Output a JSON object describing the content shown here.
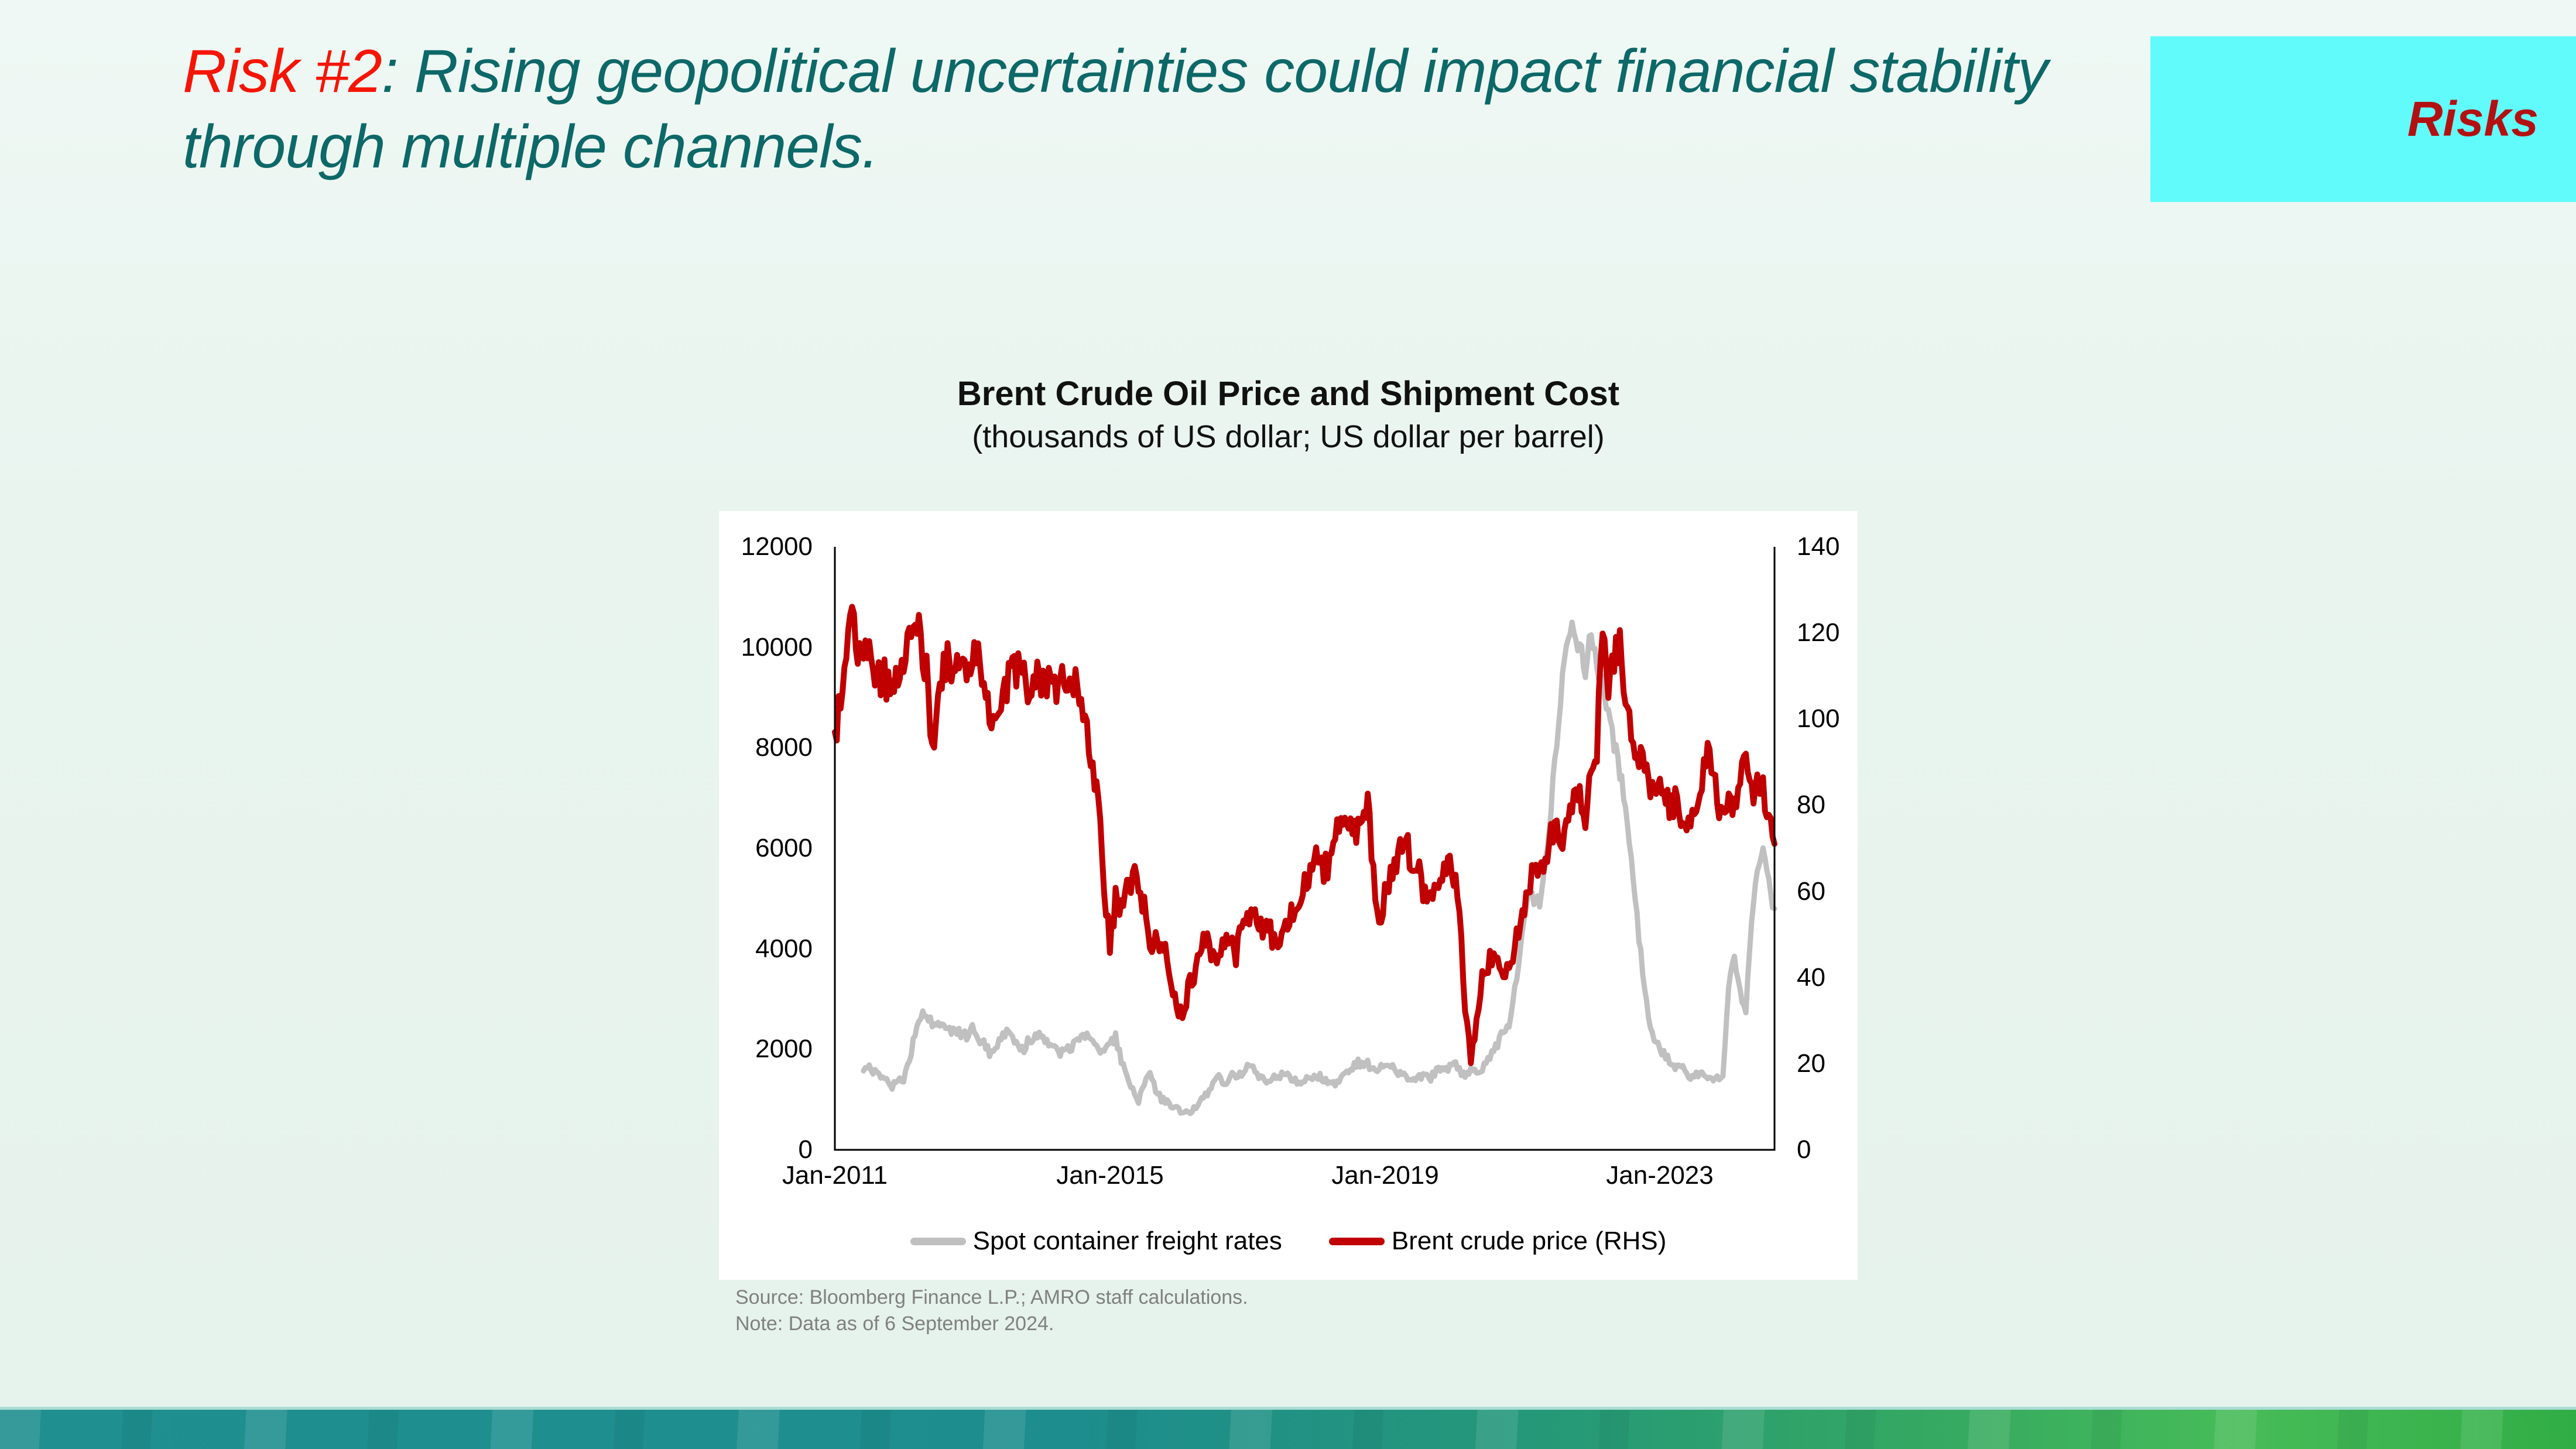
{
  "slide": {
    "title": {
      "highlight": "Risk #2",
      "rest": ": Rising geopolitical uncertainties could impact financial stability through multiple channels.",
      "highlight_color": "#F61505",
      "text_color": "#0D6868"
    },
    "section_tab": {
      "label": "Risks",
      "bg_color": "#62FBFB",
      "text_color": "#B31111"
    },
    "background_color": "#E9F4EF",
    "footer_colors": {
      "left_teal": "#1F8F8F",
      "right_green": "#31AD46"
    }
  },
  "chart": {
    "title": "Brent Crude Oil Price and Shipment Cost",
    "subtitle": "(thousands of US dollar; US dollar per barrel)",
    "source": "Source: Bloomberg Finance L.P.; AMRO staff calculations.",
    "note": "Note: Data as of 6 September 2024."
  },
  "chart_data": {
    "type": "line",
    "title": "Brent Crude Oil Price and Shipment Cost",
    "subtitle": "(thousands of US dollar; US dollar per barrel)",
    "x_start_month": "2011-01",
    "x_end_month": "2024-09",
    "x_tick_labels": [
      "Jan-2011",
      "Jan-2015",
      "Jan-2019",
      "Jan-2023"
    ],
    "x_tick_month_index": [
      0,
      48,
      96,
      144
    ],
    "left_axis": {
      "min": 0,
      "max": 12000,
      "tick_step": 2000,
      "ticks": [
        12000,
        10000,
        8000,
        6000,
        4000,
        2000,
        0
      ]
    },
    "right_axis": {
      "min": 0,
      "max": 140,
      "tick_step": 20,
      "ticks": [
        140,
        120,
        100,
        80,
        60,
        40,
        20,
        0
      ]
    },
    "grid": false,
    "legend_position": "bottom",
    "series": [
      {
        "name": "Spot container freight rates",
        "axis": "left",
        "color": "#C0C0C0",
        "monthly_values": [
          null,
          null,
          null,
          null,
          null,
          1570,
          1620,
          1540,
          1480,
          1400,
          1260,
          1350,
          1400,
          1800,
          2300,
          2650,
          2700,
          2500,
          2600,
          2400,
          2350,
          2450,
          2300,
          2250,
          2400,
          2250,
          2100,
          1950,
          2050,
          2200,
          2300,
          2250,
          2100,
          2000,
          2200,
          2250,
          2300,
          2200,
          2050,
          1900,
          1950,
          2000,
          2100,
          2200,
          2250,
          2100,
          1950,
          1900,
          2100,
          2250,
          1800,
          1400,
          1250,
          1000,
          1300,
          1600,
          1200,
          1000,
          950,
          900,
          800,
          700,
          750,
          850,
          1050,
          1150,
          1300,
          1450,
          1300,
          1500,
          1400,
          1550,
          1700,
          1650,
          1500,
          1400,
          1350,
          1450,
          1500,
          1450,
          1400,
          1350,
          1400,
          1450,
          1500,
          1450,
          1350,
          1300,
          1400,
          1500,
          1600,
          1700,
          1750,
          1700,
          1650,
          1600,
          1700,
          1650,
          1550,
          1500,
          1450,
          1400,
          1450,
          1500,
          1450,
          1550,
          1600,
          1650,
          1700,
          1600,
          1500,
          1550,
          1600,
          1650,
          1800,
          1950,
          2200,
          2400,
          2600,
          3500,
          4300,
          5200,
          5000,
          4900,
          5700,
          6800,
          8200,
          9400,
          10100,
          10400,
          9900,
          9600,
          10300,
          9800,
          9200,
          8600,
          8100,
          7500,
          6900,
          5800,
          4600,
          3500,
          2600,
          2200,
          2000,
          1850,
          1700,
          1650,
          1600,
          1500,
          1450,
          1550,
          1400,
          1350,
          1400,
          1500,
          3300,
          3900,
          3100,
          2800,
          4400,
          5600,
          5900,
          5300,
          4800
        ]
      },
      {
        "name": "Brent crude price (RHS)",
        "axis": "right",
        "color": "#C00000",
        "monthly_values": [
          97,
          104,
          115,
          124,
          115,
          114,
          117,
          110,
          110,
          109,
          111,
          108,
          111,
          119,
          125,
          120,
          110,
          95,
          103,
          113,
          113,
          112,
          110,
          109,
          113,
          116,
          109,
          102,
          103,
          103,
          108,
          111,
          112,
          109,
          108,
          111,
          108,
          109,
          108,
          108,
          110,
          112,
          107,
          102,
          97,
          88,
          79,
          62,
          48,
          58,
          56,
          60,
          64,
          62,
          56,
          47,
          48,
          49,
          45,
          38,
          31,
          33,
          39,
          42,
          47,
          49,
          45,
          46,
          47,
          50,
          45,
          54,
          55,
          55,
          52,
          52,
          51,
          47,
          49,
          52,
          56,
          58,
          63,
          64,
          69,
          65,
          66,
          72,
          77,
          75,
          74,
          73,
          79,
          81,
          65,
          52,
          60,
          64,
          67,
          71,
          70,
          63,
          64,
          59,
          62,
          60,
          63,
          66,
          64,
          56,
          33,
          21,
          30,
          40,
          43,
          45,
          41,
          40,
          44,
          50,
          55,
          62,
          64,
          65,
          68,
          73,
          74,
          71,
          75,
          84,
          81,
          77,
          86,
          94,
          122,
          106,
          113,
          117,
          107,
          97,
          89,
          93,
          87,
          81,
          83,
          83,
          79,
          83,
          76,
          74,
          80,
          85,
          92,
          88,
          82,
          77,
          79,
          82,
          85,
          89,
          83,
          85,
          84,
          79,
          71
        ]
      }
    ]
  }
}
